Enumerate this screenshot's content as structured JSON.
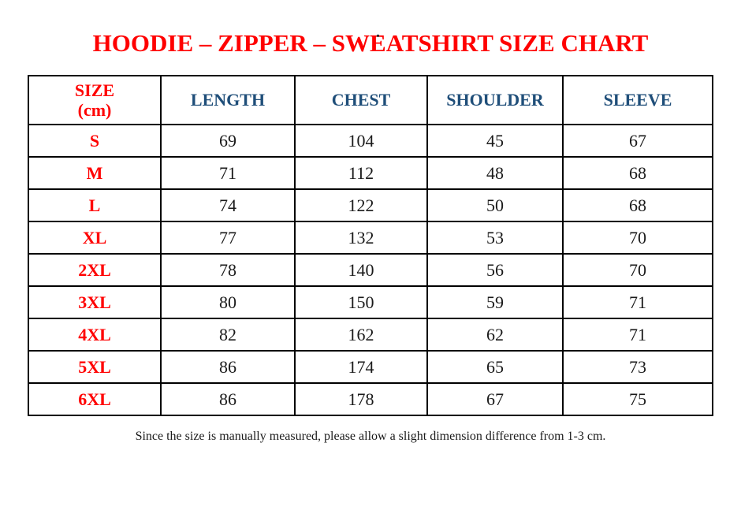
{
  "page": {
    "stray_mark": ".",
    "title": "HOODIE – ZIPPER – SWEATSHIRT SIZE CHART",
    "footer_note": "Since the size is manually measured, please allow a slight dimension difference from 1-3 cm."
  },
  "colors": {
    "background": "#FFFFFF",
    "title_red": "#FF0000",
    "header_blue": "#1F4E79",
    "body_text": "#1A1A1A",
    "table_border": "#000000"
  },
  "chart_data": {
    "type": "table",
    "title": "HOODIE – ZIPPER – SWEATSHIRT SIZE CHART",
    "unit": "cm",
    "columns": [
      "SIZE (cm)",
      "LENGTH",
      "CHEST",
      "SHOULDER",
      "SLEEVE"
    ],
    "size_header": {
      "line1": "SIZE",
      "line2": "(cm)"
    },
    "rows": [
      {
        "size": "S",
        "length": 69,
        "chest": 104,
        "shoulder": 45,
        "sleeve": 67
      },
      {
        "size": "M",
        "length": 71,
        "chest": 112,
        "shoulder": 48,
        "sleeve": 68
      },
      {
        "size": "L",
        "length": 74,
        "chest": 122,
        "shoulder": 50,
        "sleeve": 68
      },
      {
        "size": "XL",
        "length": 77,
        "chest": 132,
        "shoulder": 53,
        "sleeve": 70
      },
      {
        "size": "2XL",
        "length": 78,
        "chest": 140,
        "shoulder": 56,
        "sleeve": 70
      },
      {
        "size": "3XL",
        "length": 80,
        "chest": 150,
        "shoulder": 59,
        "sleeve": 71
      },
      {
        "size": "4XL",
        "length": 82,
        "chest": 162,
        "shoulder": 62,
        "sleeve": 71
      },
      {
        "size": "5XL",
        "length": 86,
        "chest": 174,
        "shoulder": 65,
        "sleeve": 73
      },
      {
        "size": "6XL",
        "length": 86,
        "chest": 178,
        "shoulder": 67,
        "sleeve": 75
      }
    ],
    "footnote": "Since the size is manually measured, please allow a slight dimension difference from 1-3 cm."
  }
}
